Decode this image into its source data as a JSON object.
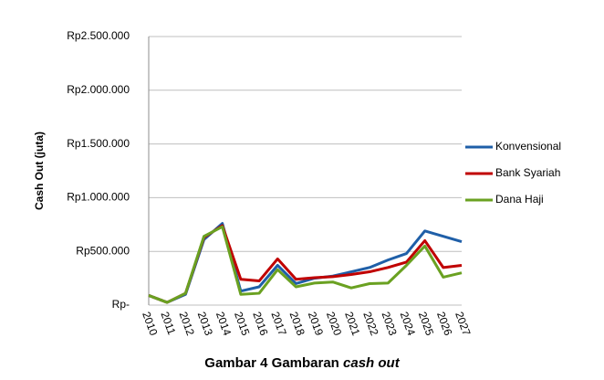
{
  "chart_data": {
    "type": "line",
    "y_label": "Cash Out (juta)",
    "caption": "Gambar 4 Gambaran",
    "caption_italic": "cash out",
    "categories": [
      "2010",
      "2011",
      "2012",
      "2013",
      "2014",
      "2015",
      "2016",
      "2017",
      "2018",
      "2019",
      "2020",
      "2021",
      "2022",
      "2023",
      "2024",
      "2025",
      "2026",
      "2027"
    ],
    "series": [
      {
        "name": "Konvensional",
        "color": "#1f5fa8",
        "values": [
          90000,
          25000,
          100000,
          610000,
          760000,
          130000,
          170000,
          370000,
          200000,
          250000,
          270000,
          310000,
          350000,
          420000,
          480000,
          690000,
          640000,
          590000
        ]
      },
      {
        "name": "Bank Syariah",
        "color": "#c00000",
        "values": [
          90000,
          25000,
          110000,
          630000,
          740000,
          240000,
          225000,
          430000,
          240000,
          255000,
          265000,
          285000,
          310000,
          350000,
          400000,
          600000,
          350000,
          370000
        ]
      },
      {
        "name": "Dana Haji",
        "color": "#6aa121",
        "values": [
          90000,
          25000,
          110000,
          640000,
          730000,
          100000,
          110000,
          330000,
          170000,
          205000,
          215000,
          160000,
          200000,
          205000,
          370000,
          550000,
          260000,
          300000
        ]
      }
    ],
    "ylim": [
      0,
      2500000
    ],
    "yticks": [
      {
        "value": 0,
        "label": "Rp-"
      },
      {
        "value": 500000,
        "label": "Rp500.000"
      },
      {
        "value": 1000000,
        "label": "Rp1.000.000"
      },
      {
        "value": 1500000,
        "label": "Rp1.500.000"
      },
      {
        "value": 2000000,
        "label": "Rp2.000.000"
      },
      {
        "value": 2500000,
        "label": "Rp2.500.000"
      }
    ],
    "grid": true,
    "legend": "right"
  }
}
